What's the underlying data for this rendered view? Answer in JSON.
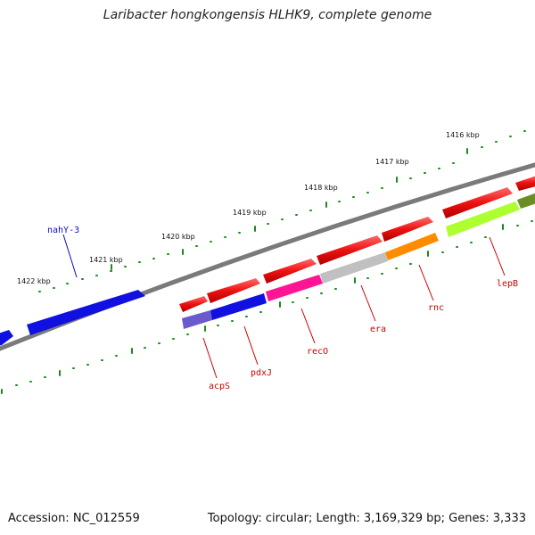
{
  "title": "Laribacter hongkongensis HLHK9, complete genome",
  "footer": {
    "accession": "Accession: NC_012559",
    "summary": "Topology: circular; Length: 3,169,329 bp; Genes: 3,333"
  },
  "scale_labels": [
    "1416 kbp",
    "1417 kbp",
    "1418 kbp",
    "1419 kbp",
    "1420 kbp",
    "1421 kbp",
    "1422 kbp"
  ],
  "genes": {
    "outer": [
      "nahY-3"
    ],
    "inner": [
      "acpS",
      "pdxJ",
      "recO",
      "era",
      "rnc",
      "lepB"
    ]
  },
  "colors": {
    "backbone": "#7a7a7a",
    "ticks": "#1a8a1a",
    "outer_label": "#1010c0",
    "inner_label": "#cc0000",
    "blue_cds": "#1010e0",
    "red_cds": "#ee1111",
    "acpS": "#6a5acd",
    "pdxJ": "#1010e0",
    "recO": "#ff1493",
    "era": "#c0c0c0",
    "rnc": "#ff8c00",
    "lepB": "#adff2f",
    "olive": "#6b8e23"
  }
}
